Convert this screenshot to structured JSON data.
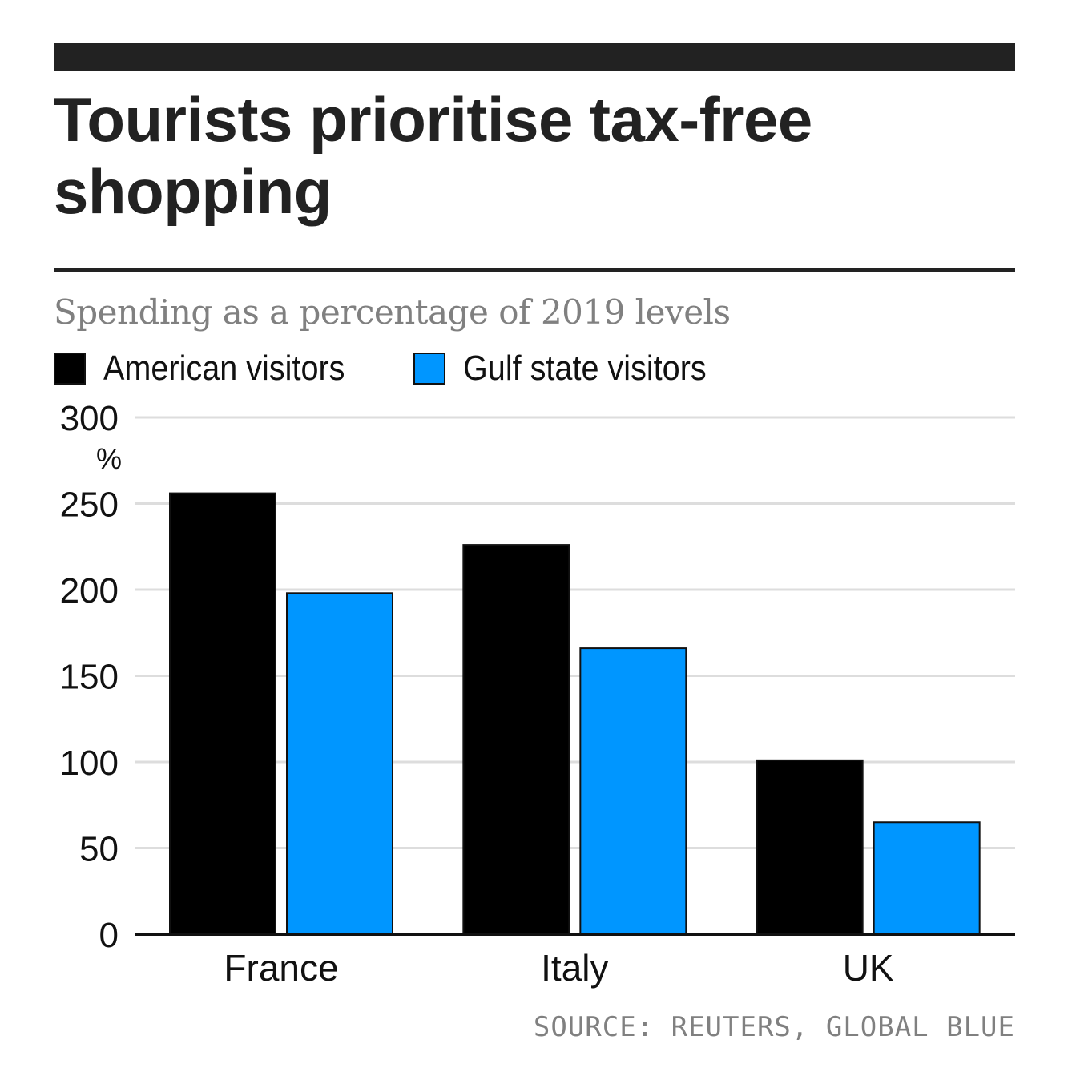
{
  "title": "Tourists prioritise tax-free shopping",
  "subtitle": "Spending as a percentage of 2019 levels",
  "source": "SOURCE: REUTERS, GLOBAL BLUE",
  "colors": {
    "american": "#000000",
    "gulf": "#0096FF",
    "grid": "#DDDDDD",
    "axis": "#111111",
    "title": "#222222",
    "muted": "#808080"
  },
  "legend": [
    {
      "label": "American visitors",
      "color": "#000000"
    },
    {
      "label": "Gulf state visitors",
      "color": "#0096FF"
    }
  ],
  "chart_data": {
    "type": "bar",
    "title": "Tourists prioritise tax-free shopping",
    "subtitle": "Spending as a percentage of 2019 levels",
    "categories": [
      "France",
      "Italy",
      "UK"
    ],
    "series": [
      {
        "name": "American visitors",
        "values": [
          256,
          226,
          101
        ]
      },
      {
        "name": "Gulf state visitors",
        "values": [
          198,
          166,
          65
        ]
      }
    ],
    "ylim": [
      0,
      300
    ],
    "yticks": [
      0,
      50,
      100,
      150,
      200,
      250,
      300
    ],
    "yunit": "%",
    "grid": true,
    "legend_position": "top-left"
  }
}
